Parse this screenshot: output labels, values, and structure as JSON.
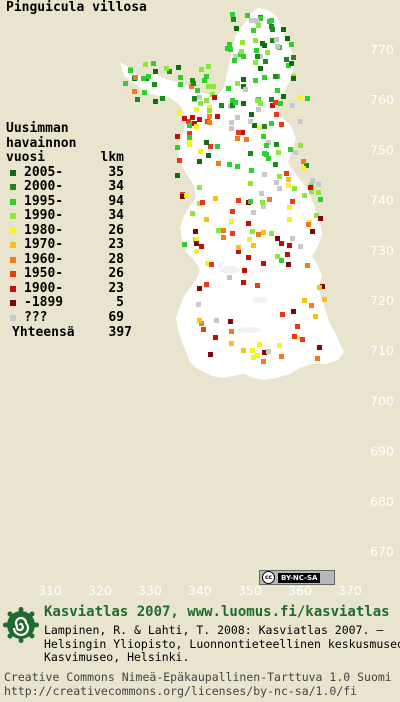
{
  "title": "Pinguicula villosa",
  "legend": {
    "header_lines": [
      "Uusimman",
      "havainnon",
      "vuosi"
    ],
    "count_header": "lkm",
    "rows": [
      {
        "label": "2005-",
        "count": "35",
        "color": "#0d6e0d"
      },
      {
        "label": "2000-",
        "count": "34",
        "color": "#1a8a1a"
      },
      {
        "label": "1995-",
        "count": "94",
        "color": "#2fcf2f"
      },
      {
        "label": "1990-",
        "count": "34",
        "color": "#8ee63a"
      },
      {
        "label": "1980-",
        "count": "26",
        "color": "#f5f51a"
      },
      {
        "label": "1970-",
        "count": "23",
        "color": "#f5c21a"
      },
      {
        "label": "1960-",
        "count": "28",
        "color": "#f57a1a"
      },
      {
        "label": "1950-",
        "count": "26",
        "color": "#e63a1a"
      },
      {
        "label": "1900-",
        "count": "23",
        "color": "#c40d0d"
      },
      {
        "label": "-1899",
        "count": "5",
        "color": "#7a0a0a"
      },
      {
        "label": "???",
        "count": "69",
        "color": "#c8c8c8"
      }
    ],
    "total_label": "Yhteensä",
    "total_count": "397"
  },
  "axes": {
    "y_ticks": [
      "770",
      "760",
      "750",
      "740",
      "730",
      "720",
      "710",
      "700",
      "690",
      "680",
      "670"
    ],
    "x_ticks": [
      "310",
      "320",
      "330",
      "340",
      "350",
      "360",
      "370"
    ]
  },
  "license_badge": {
    "cc": "cc",
    "text": "BY-NC-SA"
  },
  "brand": "Kasviatlas 2007, www.luomus.fi/kasviatlas",
  "citation": [
    "Lampinen, R. & Lahti, T. 2008: Kasviatlas 2007. –",
    "Helsingin Yliopisto, Luonnontieteellinen keskusmuseo,",
    "Kasvimuseo, Helsinki."
  ],
  "license": [
    "Creative Commons Nimeä-Epäkaupallinen-Tarttuva 1.0 Suomi",
    "http://creativecommons.org/licenses/by-nc-sa/1.0/fi"
  ],
  "colors": {
    "background": "#e8e4ce",
    "land": "#ffffff",
    "brand": "#1f6b2e"
  }
}
